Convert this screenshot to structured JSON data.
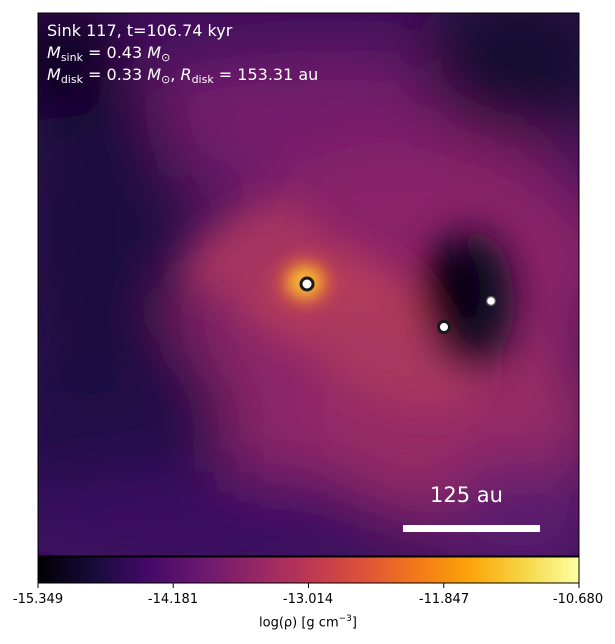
{
  "annotation": {
    "line1": "Sink 117, t=106.74 kyr",
    "msink_symbol": "M",
    "msink_sub": "sink",
    "msink_value": " = 0.43 ",
    "msink_unit": "M",
    "msink_unit_sub": "⊙",
    "mdisk_symbol": "M",
    "mdisk_sub": "disk",
    "mdisk_value": " = 0.33 ",
    "mdisk_unit": "M",
    "mdisk_unit_sub": "⊙",
    "sep": ", ",
    "rdisk_symbol": "R",
    "rdisk_sub": "disk",
    "rdisk_value": " = 153.31 au"
  },
  "scale_bar": {
    "label": "125 au"
  },
  "colorbar": {
    "ticks": [
      "-15.349",
      "-14.181",
      "-13.014",
      "-11.847",
      "-10.680"
    ],
    "label_main": "log(ρ) [g cm",
    "label_exp": "−3",
    "label_end": "]",
    "colormap": "inferno"
  },
  "sinks": [
    {
      "name": "sink-117",
      "marker": "primary"
    },
    {
      "name": "sink-b",
      "marker": "secondary"
    },
    {
      "name": "sink-c",
      "marker": "secondary"
    }
  ]
}
